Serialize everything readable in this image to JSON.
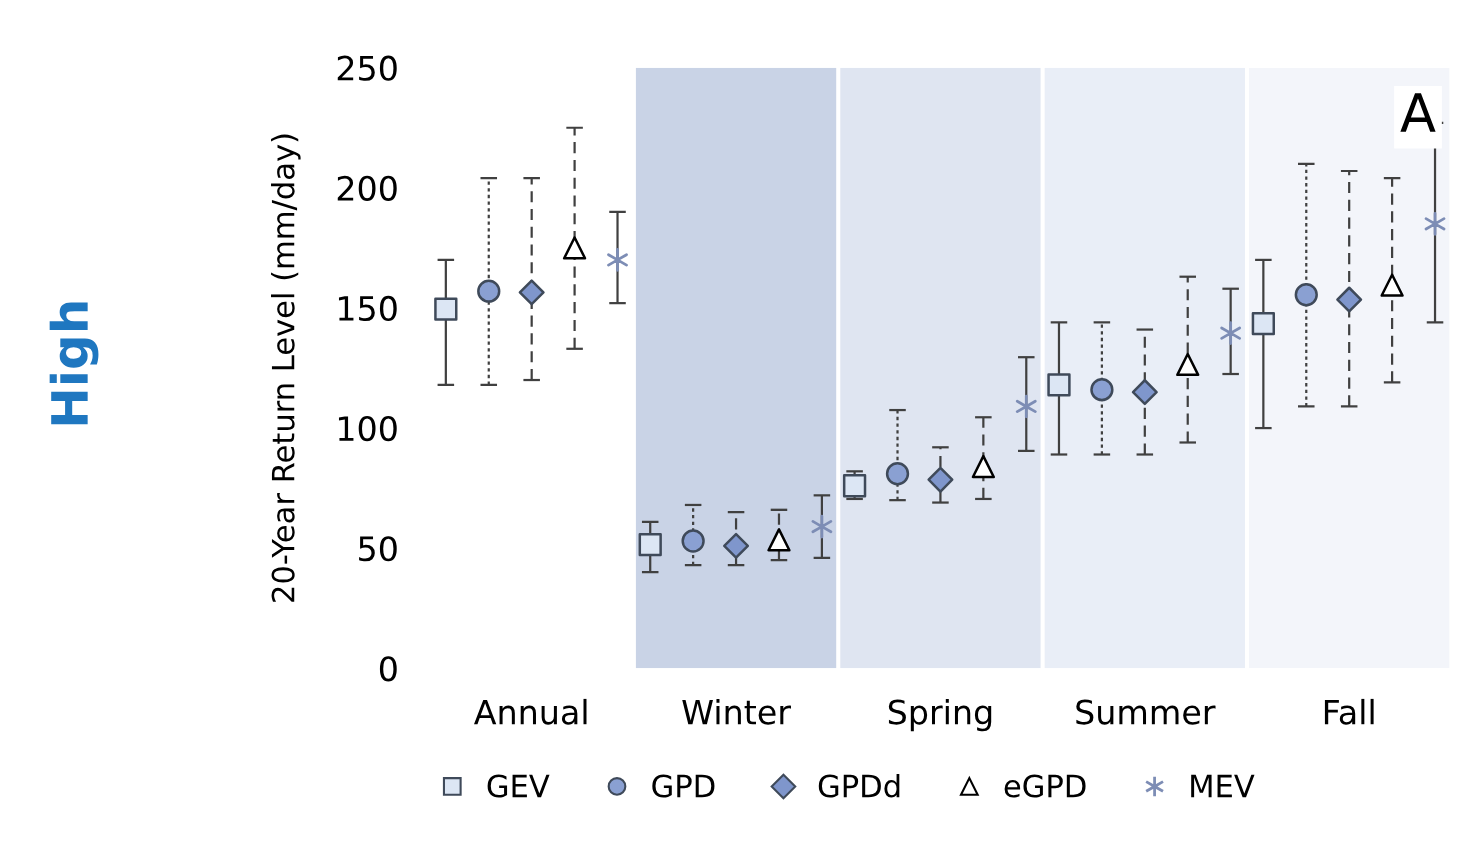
{
  "chart_data": {
    "type": "scatter",
    "ylabel": "20-Year Return Level (mm/day)",
    "categories": [
      "Annual",
      "Winter",
      "Spring",
      "Summer",
      "Fall"
    ],
    "ylim": [
      0,
      250
    ],
    "yticks": [
      0,
      50,
      100,
      150,
      200,
      250
    ],
    "grid": false,
    "legend": "bottom",
    "annotations": [
      "A",
      "High"
    ],
    "bands": [
      {
        "axis": "x",
        "from": "Winter",
        "to": "Winter",
        "color": "#c9d3e6"
      },
      {
        "axis": "x",
        "from": "Spring",
        "to": "Spring",
        "color": "#dfe5f1"
      },
      {
        "axis": "x",
        "from": "Summer",
        "to": "Summer",
        "color": "#e9eef7"
      },
      {
        "axis": "x",
        "from": "Fall",
        "to": "Fall",
        "color": "#f3f5fa"
      }
    ],
    "series": [
      {
        "name": "GEV",
        "color": "#dce6f4",
        "marker": "square",
        "line_style": "solid",
        "values": [
          149.5,
          51.5,
          76,
          118,
          143.5
        ],
        "errors": [
          [
            118,
            170
          ],
          [
            40,
            61
          ],
          [
            70.5,
            82
          ],
          [
            89,
            144
          ],
          [
            100,
            170
          ]
        ]
      },
      {
        "name": "GPD",
        "color": "#8aa0d2",
        "marker": "circle",
        "line_style": "dotted",
        "values": [
          157,
          53,
          81,
          116,
          155.5
        ],
        "errors": [
          [
            118,
            204
          ],
          [
            43,
            68
          ],
          [
            70,
            107.5
          ],
          [
            89,
            144
          ],
          [
            109,
            210
          ]
        ]
      },
      {
        "name": "GPDd",
        "color": "#7f96cc",
        "marker": "diamond",
        "line_style": "dashed",
        "values": [
          156.5,
          51,
          78.5,
          115,
          153.5
        ],
        "errors": [
          [
            120,
            204
          ],
          [
            43,
            65
          ],
          [
            69,
            92
          ],
          [
            89,
            141
          ],
          [
            109,
            207
          ]
        ]
      },
      {
        "name": "eGPD",
        "color": "#ffffff",
        "marker": "triangle",
        "line_style": "dashed",
        "values": [
          175,
          53.5,
          84,
          126.5,
          159.5
        ],
        "errors": [
          [
            133,
            225
          ],
          [
            45,
            66
          ],
          [
            70.5,
            104.5
          ],
          [
            94,
            163
          ],
          [
            119,
            204
          ]
        ]
      },
      {
        "name": "MEV",
        "color": "#7d8db5",
        "marker": "cross",
        "line_style": "solid",
        "values": [
          170,
          59,
          109,
          139.5,
          185
        ],
        "errors": [
          [
            152,
            190
          ],
          [
            46,
            72
          ],
          [
            90.5,
            129.5
          ],
          [
            122.5,
            158
          ],
          [
            144,
            227
          ]
        ]
      }
    ]
  }
}
